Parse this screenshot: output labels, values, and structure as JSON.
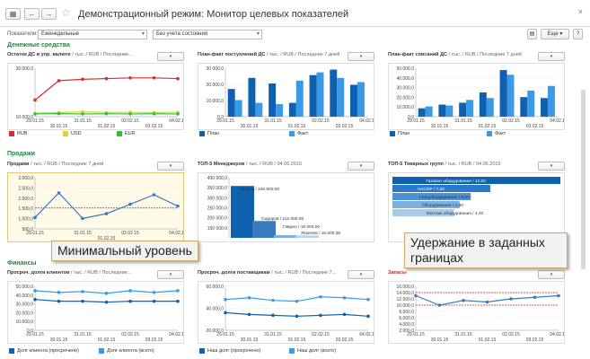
{
  "window": {
    "title": "Демонстрационный режим: Монитор целевых показателей",
    "back": "←",
    "forward": "→",
    "close": "×"
  },
  "filters": {
    "label": "Показатели:",
    "period": "Еженедельные",
    "state": "Без учета состояния",
    "more": "Еще",
    "help": "?"
  },
  "sections": {
    "money": "Денежные средства",
    "sales": "Продажи",
    "finance": "Финансы"
  },
  "panels": {
    "p1": {
      "title": "Остаток ДС в упр. валюте",
      "sub": "/ тыс. / RUB / Последние...",
      "legend": [
        "RUB",
        "USD",
        "EUR"
      ],
      "yticks": [
        "30.000,0",
        "10.000,0"
      ],
      "xticks_top": [
        "29.01.15",
        "31.01.15",
        "02.02.15",
        "04.02.15"
      ],
      "xticks_bot": [
        "30.01.15",
        "01.02.15",
        "03.02.15"
      ]
    },
    "p2": {
      "title": "План-факт поступлений ДС",
      "sub": "/ тыс. / RUB / Последние 7 дней",
      "legend": [
        "План",
        "Факт"
      ],
      "yticks": [
        "30.000,0",
        "20.000,0",
        "10.000,0",
        "0,0"
      ],
      "xticks_top": [
        "29.01.15",
        "31.01.15",
        "02.02.15",
        "04.02.15"
      ],
      "xticks_bot": [
        "30.01.15",
        "01.02.15",
        "03.02.15"
      ]
    },
    "p3": {
      "title": "План-факт списаний ДС",
      "sub": "/ тыс. / RUB / Последние 7 дней",
      "legend": [
        "План",
        "Факт"
      ],
      "yticks": [
        "50.000,0",
        "40.000,0",
        "30.000,0",
        "20.000,0",
        "10.000,0",
        "0,0"
      ],
      "xticks_top": [
        "29.01.15",
        "31.01.15",
        "02.02.15",
        "04.02.15"
      ],
      "xticks_bot": [
        "30.01.15",
        "01.02.15",
        "03.02.15"
      ]
    },
    "p4": {
      "title": "Продажи",
      "sub": "/ тыс. / RUB / Последние 7 дней",
      "yticks": [
        "3.000,0",
        "2.500,0",
        "2.000,0",
        "1.500,0",
        "1.000,0",
        "500,0"
      ],
      "xticks_top": [
        "29.01.15",
        "31.01.15",
        "02.02.15",
        "04.02.15"
      ],
      "xticks_bot": [
        "01.02.15"
      ]
    },
    "p5": {
      "title": "ТОП-5 Менеджеров",
      "sub": "/ тыс. / RUB / 04.06.2015",
      "yticks": [
        "400 000,0",
        "350 000,0",
        "300 000,0",
        "250 000,0",
        "200 000,0",
        "150 000,0"
      ],
      "labels": [
        "Петров / 345 000,00",
        "Сидоров / 112 000,00",
        "Гаврил / 18 000,00",
        "Яковлев / 16 000,00"
      ]
    },
    "p6": {
      "title": "ТОП-5 Товарных групп",
      "sub": "/ тыс. / RUB / 04.06.2015",
      "labels": [
        "Газовое оборудование / 12,00",
        "НАСОР / 7,00",
        "Спецоборудование / 5,60",
        "Оборудование / 4,80",
        "Монтаж оборудования / 4,40"
      ]
    },
    "p7": {
      "title": "Просроч. долги клиентов",
      "sub": "/ тыс. / RUB / Последние...",
      "legend": [
        "Долг клиента (просрочено)",
        "Долг клиента (всего)"
      ],
      "yticks": [
        "50.000,0",
        "40.000,0",
        "30.000,0",
        "20.000,0",
        "10.000,0",
        "0,0"
      ],
      "xticks_top": [
        "29.01.15",
        "31.01.15",
        "02.02.15",
        "04.02.15"
      ],
      "xticks_bot": [
        "30.01.15",
        "01.02.15",
        "03.02.15"
      ]
    },
    "p8": {
      "title": "Просроч. долги поставщикам",
      "sub": "/ тыс. / RUB / Последние 7...",
      "legend": [
        "Наш долг (просрочено)",
        "Наш долг (всего)"
      ],
      "yticks": [
        "60.000,0",
        "40.000,0",
        "20.000,0"
      ],
      "xticks_top": [
        "29.01.15",
        "31.01.15",
        "02.02.15",
        "04.02.15"
      ],
      "xticks_bot": [
        "30.01.15",
        "01.02.15",
        "03.02.15"
      ]
    },
    "p9": {
      "title": "Запасы",
      "sub": "",
      "yticks": [
        "16.000,0",
        "14.000,0",
        "12.000,0",
        "10.000,0",
        "8.000,0",
        "6.000,0",
        "4.000,0",
        "2.000,0"
      ],
      "xticks_top": [
        "29.01.15",
        "31.01.15",
        "02.02.15",
        "04.02.15"
      ],
      "xticks_bot": [
        "30.01.15",
        "01.02.15",
        "03.02.15"
      ]
    }
  },
  "callouts": {
    "min": "Минимальный уровень",
    "hold": "Удержание в заданных границах"
  },
  "colors": {
    "section": "#1a8a3a",
    "plan": "#1060b0",
    "fact": "#3a9ae8",
    "rub": "#d03030",
    "usd": "#e8d030",
    "eur": "#30c030",
    "line": "#3a7abf",
    "accent": "#d5a66a"
  },
  "chart_data": [
    {
      "type": "line",
      "title": "Остаток ДС в упр. валюте",
      "x": [
        "29.01.15",
        "30.01.15",
        "31.01.15",
        "01.02.15",
        "02.02.15",
        "03.02.15",
        "04.02.15"
      ],
      "series": [
        {
          "name": "RUB",
          "values": [
            12000,
            26000,
            27000,
            27500,
            28000,
            28000,
            27500
          ]
        },
        {
          "name": "USD",
          "values": [
            2500,
            3000,
            3500,
            3000,
            3200,
            3000,
            3200
          ]
        },
        {
          "name": "EUR",
          "values": [
            2000,
            2200,
            2000,
            2100,
            2000,
            2100,
            2000
          ]
        }
      ]
    },
    {
      "type": "bar",
      "title": "План-факт поступлений ДС",
      "categories": [
        "29.01.15",
        "30.01.15",
        "31.01.15",
        "01.02.15",
        "02.02.15",
        "03.02.15",
        "04.02.15"
      ],
      "series": [
        {
          "name": "План",
          "values": [
            20000,
            28000,
            24000,
            10000,
            30000,
            34000,
            23000
          ]
        },
        {
          "name": "Факт",
          "values": [
            12000,
            10000,
            9000,
            26000,
            32000,
            28000,
            25000
          ]
        }
      ]
    },
    {
      "type": "bar",
      "title": "План-факт списаний ДС",
      "categories": [
        "29.01.15",
        "30.01.15",
        "31.01.15",
        "01.02.15",
        "02.02.15",
        "03.02.15",
        "04.02.15"
      ],
      "series": [
        {
          "name": "План",
          "values": [
            9000,
            13000,
            15000,
            26000,
            50000,
            21000,
            20000
          ]
        },
        {
          "name": "Факт",
          "values": [
            11000,
            12000,
            18000,
            20000,
            45000,
            28000,
            33000
          ]
        }
      ]
    },
    {
      "type": "line",
      "title": "Продажи",
      "x": [
        "29.01.15",
        "30.01.15",
        "31.01.15",
        "01.02.15",
        "02.02.15",
        "03.02.15",
        "04.02.15"
      ],
      "series": [
        {
          "name": "",
          "values": [
            1000,
            2300,
            950,
            1200,
            1700,
            2200,
            1600
          ]
        }
      ]
    },
    {
      "type": "bar",
      "title": "ТОП-5 Менеджеров",
      "categories": [
        "Петров",
        "Сидоров",
        "Гаврил",
        "Яковлев"
      ],
      "values": [
        345000,
        112000,
        18000,
        16000
      ]
    },
    {
      "type": "bar",
      "title": "ТОП-5 Товарных групп",
      "categories": [
        "Газовое оборудование",
        "НАСОР",
        "Спецоборудование",
        "Оборудование",
        "Монтаж оборудования"
      ],
      "values": [
        12,
        7,
        5.6,
        4.8,
        4.4
      ]
    },
    {
      "type": "line",
      "title": "Просроч. долги клиентов",
      "x": [
        "29.01.15",
        "30.01.15",
        "31.01.15",
        "01.02.15",
        "02.02.15",
        "03.02.15",
        "04.02.15"
      ],
      "series": [
        {
          "name": "Долг клиента (просрочено)",
          "values": [
            35000,
            33000,
            33000,
            32000,
            33000,
            33000,
            33000
          ]
        },
        {
          "name": "Долг клиента (всего)",
          "values": [
            45000,
            43000,
            44000,
            42000,
            45000,
            43000,
            45000
          ]
        }
      ]
    },
    {
      "type": "line",
      "title": "Просроч. долги поставщикам",
      "x": [
        "29.01.15",
        "30.01.15",
        "31.01.15",
        "01.02.15",
        "02.02.15",
        "03.02.15",
        "04.02.15"
      ],
      "series": [
        {
          "name": "Наш долг (просрочено)",
          "values": [
            30000,
            28000,
            27000,
            26000,
            27000,
            28000,
            26000
          ]
        },
        {
          "name": "Наш долг (всего)",
          "values": [
            45000,
            47000,
            44000,
            43000,
            48000,
            47000,
            45000
          ]
        }
      ]
    },
    {
      "type": "line",
      "title": "Запасы",
      "x": [
        "29.01.15",
        "30.01.15",
        "31.01.15",
        "01.02.15",
        "02.02.15",
        "03.02.15",
        "04.02.15"
      ],
      "series": [
        {
          "name": "",
          "values": [
            13000,
            10000,
            11500,
            11000,
            12000,
            12500,
            13000
          ]
        }
      ]
    }
  ]
}
